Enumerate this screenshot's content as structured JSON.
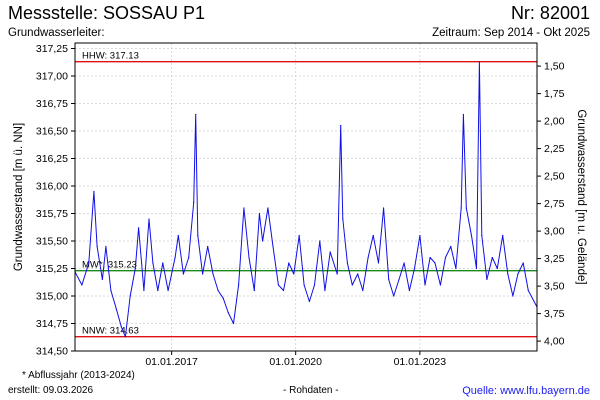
{
  "header": {
    "title": "Messstelle: SOSSAU P1",
    "number": "Nr: 82001",
    "aquifer_label": "Grundwasserleiter:",
    "period": "Zeitraum: Sep 2014 - Okt 2025"
  },
  "footer": {
    "note": "* Abflussjahr (2013-2024)",
    "created": "erstellt:  09.03.2026",
    "raw": "- Rohdaten -",
    "source": "Quelle:  www.lfu.bayern.de"
  },
  "colors": {
    "series": "#1010e6",
    "hhw": "#e01010",
    "nnw": "#e01010",
    "mw": "#1a8a1a",
    "grid": "#d0d0d0",
    "frame": "#000000"
  },
  "chart_data": {
    "type": "line",
    "title": "Messstelle: SOSSAU P1",
    "ylabel": "Grundwasserstand [m ü. NN]",
    "y2label": "Grundwasserstand [m u. Gelände]",
    "xlabel": "",
    "xlim": [
      "2014-09-01",
      "2025-10-31"
    ],
    "ylim": [
      314.5,
      317.3
    ],
    "y2lim": [
      4.09,
      1.29
    ],
    "grid": true,
    "y_ticks": [
      "314,50",
      "314,75",
      "315,00",
      "315,25",
      "315,50",
      "315,75",
      "316,00",
      "316,25",
      "316,50",
      "316,75",
      "317,00",
      "317,25"
    ],
    "y2_ticks": [
      "1,50",
      "1,75",
      "2,00",
      "2,25",
      "2,50",
      "2,75",
      "3,00",
      "3,25",
      "3,50",
      "3,75",
      "4,00"
    ],
    "x_ticks": [
      "01.01.2017",
      "01.01.2020",
      "01.01.2023"
    ],
    "reference_lines": [
      {
        "label": "HHW: 317.13",
        "value": 317.13,
        "color": "#e01010"
      },
      {
        "label": "MW*: 315.23",
        "value": 315.23,
        "color": "#1a8a1a"
      },
      {
        "label": "NNW: 314.63",
        "value": 314.63,
        "color": "#e01010"
      }
    ],
    "series": [
      {
        "values": [
          [
            "2014-09-01",
            315.22
          ],
          [
            "2014-11-01",
            315.1
          ],
          [
            "2015-01-01",
            315.3
          ],
          [
            "2015-02-15",
            315.95
          ],
          [
            "2015-03-15",
            315.45
          ],
          [
            "2015-05-01",
            315.15
          ],
          [
            "2015-06-01",
            315.45
          ],
          [
            "2015-07-15",
            315.05
          ],
          [
            "2015-09-01",
            314.88
          ],
          [
            "2015-10-15",
            314.72
          ],
          [
            "2015-11-20",
            314.63
          ],
          [
            "2016-01-01",
            315.0
          ],
          [
            "2016-02-15",
            315.25
          ],
          [
            "2016-03-15",
            315.62
          ],
          [
            "2016-05-01",
            315.05
          ],
          [
            "2016-06-15",
            315.7
          ],
          [
            "2016-07-20",
            315.3
          ],
          [
            "2016-09-01",
            315.05
          ],
          [
            "2016-10-15",
            315.3
          ],
          [
            "2016-12-01",
            315.05
          ],
          [
            "2017-02-01",
            315.35
          ],
          [
            "2017-03-01",
            315.55
          ],
          [
            "2017-04-15",
            315.2
          ],
          [
            "2017-06-01",
            315.35
          ],
          [
            "2017-07-15",
            315.85
          ],
          [
            "2017-08-01",
            316.65
          ],
          [
            "2017-08-20",
            315.55
          ],
          [
            "2017-10-01",
            315.2
          ],
          [
            "2017-11-15",
            315.45
          ],
          [
            "2018-01-01",
            315.2
          ],
          [
            "2018-02-15",
            315.05
          ],
          [
            "2018-04-01",
            314.98
          ],
          [
            "2018-05-15",
            314.85
          ],
          [
            "2018-07-01",
            314.75
          ],
          [
            "2018-08-15",
            315.1
          ],
          [
            "2018-10-01",
            315.8
          ],
          [
            "2018-11-15",
            315.35
          ],
          [
            "2019-01-01",
            315.05
          ],
          [
            "2019-02-15",
            315.75
          ],
          [
            "2019-03-15",
            315.5
          ],
          [
            "2019-05-01",
            315.8
          ],
          [
            "2019-06-15",
            315.45
          ],
          [
            "2019-08-01",
            315.1
          ],
          [
            "2019-09-15",
            315.05
          ],
          [
            "2019-11-01",
            315.3
          ],
          [
            "2019-12-15",
            315.2
          ],
          [
            "2020-02-01",
            315.55
          ],
          [
            "2020-03-15",
            315.1
          ],
          [
            "2020-05-01",
            314.95
          ],
          [
            "2020-06-15",
            315.1
          ],
          [
            "2020-08-01",
            315.5
          ],
          [
            "2020-09-15",
            315.05
          ],
          [
            "2020-11-01",
            315.4
          ],
          [
            "2021-01-01",
            315.2
          ],
          [
            "2021-02-01",
            316.55
          ],
          [
            "2021-02-20",
            315.7
          ],
          [
            "2021-04-01",
            315.3
          ],
          [
            "2021-05-15",
            315.1
          ],
          [
            "2021-07-01",
            315.2
          ],
          [
            "2021-08-15",
            315.05
          ],
          [
            "2021-10-01",
            315.35
          ],
          [
            "2021-11-15",
            315.55
          ],
          [
            "2022-01-01",
            315.3
          ],
          [
            "2022-02-15",
            315.8
          ],
          [
            "2022-04-01",
            315.15
          ],
          [
            "2022-05-15",
            315.0
          ],
          [
            "2022-07-01",
            315.15
          ],
          [
            "2022-08-15",
            315.3
          ],
          [
            "2022-10-01",
            315.05
          ],
          [
            "2022-11-15",
            315.25
          ],
          [
            "2023-01-01",
            315.55
          ],
          [
            "2023-02-15",
            315.1
          ],
          [
            "2023-04-01",
            315.35
          ],
          [
            "2023-05-15",
            315.3
          ],
          [
            "2023-07-01",
            315.1
          ],
          [
            "2023-08-15",
            315.35
          ],
          [
            "2023-10-01",
            315.45
          ],
          [
            "2023-11-15",
            315.25
          ],
          [
            "2024-01-01",
            315.8
          ],
          [
            "2024-01-20",
            316.65
          ],
          [
            "2024-02-15",
            315.8
          ],
          [
            "2024-04-01",
            315.55
          ],
          [
            "2024-05-15",
            315.25
          ],
          [
            "2024-06-10",
            317.13
          ],
          [
            "2024-07-01",
            315.55
          ],
          [
            "2024-08-15",
            315.15
          ],
          [
            "2024-10-01",
            315.35
          ],
          [
            "2024-11-15",
            315.25
          ],
          [
            "2025-01-01",
            315.55
          ],
          [
            "2025-02-15",
            315.2
          ],
          [
            "2025-04-01",
            315.0
          ],
          [
            "2025-05-15",
            315.2
          ],
          [
            "2025-07-01",
            315.3
          ],
          [
            "2025-08-15",
            315.05
          ],
          [
            "2025-10-31",
            314.9
          ]
        ]
      }
    ]
  }
}
